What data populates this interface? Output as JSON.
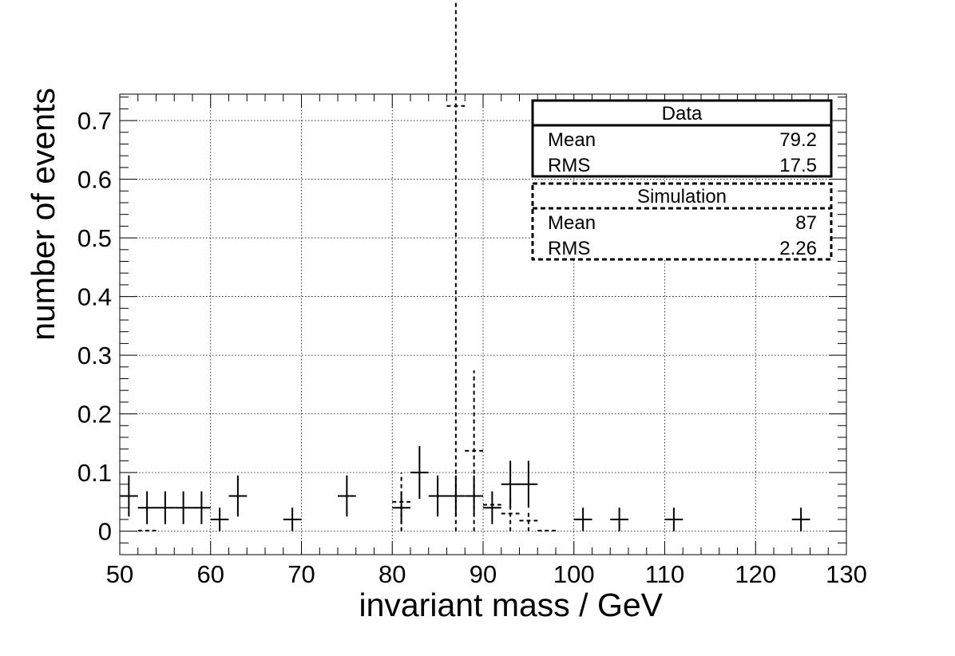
{
  "chart_data": {
    "type": "scatter",
    "title": "",
    "xlabel": "invariant mass / GeV",
    "ylabel": "number of events",
    "xlim": [
      50,
      130
    ],
    "ylim": [
      -0.04,
      0.745
    ],
    "grid": true,
    "x_ticks": [
      {
        "value": 50,
        "label": "50"
      },
      {
        "value": 60,
        "label": "60"
      },
      {
        "value": 70,
        "label": "70"
      },
      {
        "value": 80,
        "label": "80"
      },
      {
        "value": 90,
        "label": "90"
      },
      {
        "value": 100,
        "label": "100"
      },
      {
        "value": 110,
        "label": "110"
      },
      {
        "value": 120,
        "label": "120"
      },
      {
        "value": 130,
        "label": "130"
      }
    ],
    "y_ticks": [
      {
        "value": 0,
        "label": "0"
      },
      {
        "value": 0.1,
        "label": "0.1"
      },
      {
        "value": 0.2,
        "label": "0.2"
      },
      {
        "value": 0.3,
        "label": "0.3"
      },
      {
        "value": 0.4,
        "label": "0.4"
      },
      {
        "value": 0.5,
        "label": "0.5"
      },
      {
        "value": 0.6,
        "label": "0.6"
      },
      {
        "value": 0.7,
        "label": "0.7"
      }
    ],
    "bin_width": 2,
    "series": [
      {
        "name": "Data",
        "style": "solid",
        "color": "#000000",
        "points": [
          {
            "x": 51,
            "y": 0.06,
            "err": 0.035
          },
          {
            "x": 53,
            "y": 0.04,
            "err": 0.028
          },
          {
            "x": 55,
            "y": 0.04,
            "err": 0.028
          },
          {
            "x": 57,
            "y": 0.04,
            "err": 0.028
          },
          {
            "x": 59,
            "y": 0.04,
            "err": 0.028
          },
          {
            "x": 61,
            "y": 0.02,
            "err": 0.02
          },
          {
            "x": 63,
            "y": 0.06,
            "err": 0.035
          },
          {
            "x": 69,
            "y": 0.02,
            "err": 0.02
          },
          {
            "x": 75,
            "y": 0.06,
            "err": 0.035
          },
          {
            "x": 81,
            "y": 0.04,
            "err": 0.028
          },
          {
            "x": 83,
            "y": 0.1,
            "err": 0.045
          },
          {
            "x": 85,
            "y": 0.06,
            "err": 0.035
          },
          {
            "x": 87,
            "y": 0.06,
            "err": 0.035
          },
          {
            "x": 89,
            "y": 0.06,
            "err": 0.035
          },
          {
            "x": 91,
            "y": 0.04,
            "err": 0.028
          },
          {
            "x": 93,
            "y": 0.08,
            "err": 0.04
          },
          {
            "x": 95,
            "y": 0.08,
            "err": 0.04
          },
          {
            "x": 101,
            "y": 0.02,
            "err": 0.02
          },
          {
            "x": 105,
            "y": 0.02,
            "err": 0.02
          },
          {
            "x": 111,
            "y": 0.02,
            "err": 0.02
          },
          {
            "x": 125,
            "y": 0.02,
            "err": 0.02
          }
        ]
      },
      {
        "name": "Simulation",
        "style": "dashed",
        "color": "#000000",
        "points": [
          {
            "x": 53,
            "y": 0.001,
            "err": 0.0
          },
          {
            "x": 81,
            "y": 0.05,
            "err": 0.05
          },
          {
            "x": 87,
            "y": 0.725,
            "err": 0.725
          },
          {
            "x": 89,
            "y": 0.137,
            "err": 0.137
          },
          {
            "x": 91,
            "y": 0.045,
            "err": 0.0
          },
          {
            "x": 93,
            "y": 0.03,
            "err": 0.03
          },
          {
            "x": 95,
            "y": 0.018,
            "err": 0.018
          },
          {
            "x": 97,
            "y": 0.001,
            "err": 0.0
          }
        ]
      }
    ],
    "stats_boxes": [
      {
        "name": "Data",
        "style": "solid",
        "rows": [
          {
            "label": "Mean",
            "value": "79.2"
          },
          {
            "label": "RMS",
            "value": "17.5"
          }
        ]
      },
      {
        "name": "Simulation",
        "style": "dashed",
        "rows": [
          {
            "label": "Mean",
            "value": "87"
          },
          {
            "label": "RMS",
            "value": "2.26"
          }
        ]
      }
    ]
  }
}
